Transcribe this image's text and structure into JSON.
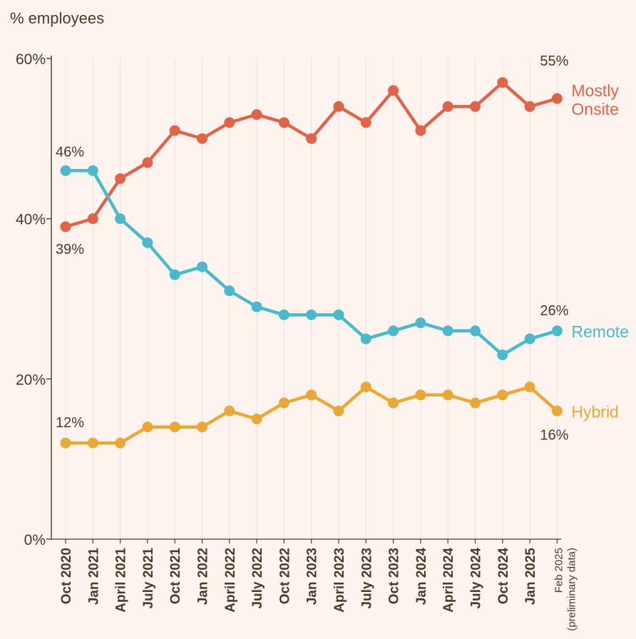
{
  "chart_data": {
    "type": "line",
    "ylabel": "% employees",
    "ylim": [
      0,
      60
    ],
    "yticks": [
      0,
      20,
      40,
      60
    ],
    "ytick_labels": [
      "0%",
      "20%",
      "40%",
      "60%"
    ],
    "categories": [
      "Oct 2020",
      "Jan 2021",
      "April 2021",
      "July 2021",
      "Oct 2021",
      "Jan 2022",
      "April 2022",
      "July 2022",
      "Oct 2022",
      "Jan 2023",
      "April 2023",
      "July 2023",
      "Oct 2023",
      "Jan 2024",
      "April 2024",
      "July 2024",
      "Oct 2024",
      "Jan 2025",
      "Feb 2025"
    ],
    "last_category_note": "(preliminary data)",
    "grid": "vertical",
    "series": [
      {
        "name": "Mostly Onsite",
        "name_lines": [
          "Mostly",
          "Onsite"
        ],
        "color": "#e0644a",
        "values": [
          39,
          40,
          45,
          47,
          51,
          50,
          52,
          53,
          52,
          50,
          54,
          52,
          56,
          51,
          54,
          54,
          57,
          54,
          55
        ],
        "start_label": "39%",
        "end_label": "55%"
      },
      {
        "name": "Remote",
        "name_lines": [
          "Remote"
        ],
        "color": "#4cb8cc",
        "values": [
          46,
          46,
          40,
          37,
          33,
          34,
          31,
          29,
          28,
          28,
          28,
          25,
          26,
          27,
          26,
          26,
          23,
          25,
          26
        ],
        "start_label": "46%",
        "end_label": "26%"
      },
      {
        "name": "Hybrid",
        "name_lines": [
          "Hybrid"
        ],
        "color": "#e9a838",
        "values": [
          12,
          12,
          12,
          14,
          14,
          14,
          16,
          15,
          17,
          18,
          16,
          19,
          17,
          18,
          18,
          17,
          18,
          19,
          16
        ],
        "start_label": "12%",
        "end_label": "16%"
      }
    ]
  }
}
